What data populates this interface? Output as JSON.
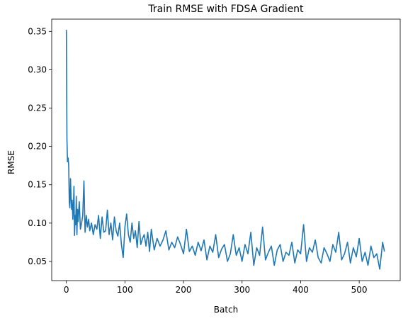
{
  "chart_data": {
    "type": "line",
    "title": "Train RMSE with FDSA Gradient",
    "xlabel": "Batch",
    "ylabel": "RMSE",
    "xlim": [
      -25,
      570
    ],
    "ylim": [
      0.025,
      0.366
    ],
    "xticks": [
      0,
      100,
      200,
      300,
      400,
      500
    ],
    "yticks": [
      0.05,
      0.1,
      0.15,
      0.2,
      0.25,
      0.3,
      0.35
    ],
    "ytick_labels": [
      "0.05",
      "0.10",
      "0.15",
      "0.20",
      "0.25",
      "0.30",
      "0.35"
    ],
    "grid": false,
    "series": [
      {
        "color": "#1f77b4",
        "x": [
          0,
          1,
          2,
          3,
          4,
          5,
          6,
          7,
          8,
          9,
          10,
          11,
          12,
          13,
          14,
          15,
          16,
          17,
          18,
          19,
          20,
          22,
          24,
          26,
          28,
          30,
          32,
          34,
          36,
          38,
          40,
          43,
          46,
          49,
          52,
          55,
          58,
          61,
          64,
          67,
          70,
          73,
          76,
          79,
          82,
          85,
          88,
          91,
          94,
          97,
          100,
          103,
          106,
          109,
          112,
          115,
          118,
          121,
          124,
          127,
          130,
          133,
          136,
          139,
          142,
          145,
          150,
          155,
          160,
          165,
          170,
          175,
          180,
          185,
          190,
          195,
          200,
          205,
          210,
          215,
          220,
          225,
          230,
          235,
          240,
          245,
          250,
          255,
          260,
          265,
          270,
          275,
          280,
          285,
          290,
          295,
          300,
          305,
          310,
          315,
          320,
          325,
          330,
          335,
          340,
          345,
          350,
          355,
          360,
          365,
          370,
          375,
          380,
          385,
          390,
          395,
          400,
          405,
          410,
          415,
          420,
          425,
          430,
          435,
          440,
          445,
          450,
          455,
          460,
          465,
          470,
          475,
          480,
          485,
          490,
          495,
          500,
          505,
          510,
          515,
          520,
          525,
          530,
          535,
          540,
          543
        ],
        "y": [
          0.352,
          0.21,
          0.18,
          0.185,
          0.175,
          0.128,
          0.12,
          0.158,
          0.135,
          0.118,
          0.13,
          0.105,
          0.12,
          0.148,
          0.084,
          0.11,
          0.098,
          0.135,
          0.085,
          0.118,
          0.102,
          0.128,
          0.092,
          0.1,
          0.11,
          0.155,
          0.088,
          0.11,
          0.095,
          0.105,
          0.09,
          0.1,
          0.085,
          0.098,
          0.092,
          0.11,
          0.08,
          0.108,
          0.088,
          0.09,
          0.117,
          0.085,
          0.1,
          0.078,
          0.108,
          0.09,
          0.083,
          0.1,
          0.072,
          0.055,
          0.095,
          0.112,
          0.085,
          0.075,
          0.1,
          0.08,
          0.09,
          0.068,
          0.102,
          0.072,
          0.08,
          0.085,
          0.07,
          0.088,
          0.063,
          0.092,
          0.065,
          0.08,
          0.07,
          0.078,
          0.09,
          0.065,
          0.075,
          0.068,
          0.082,
          0.072,
          0.06,
          0.092,
          0.063,
          0.07,
          0.058,
          0.075,
          0.064,
          0.078,
          0.052,
          0.07,
          0.062,
          0.085,
          0.055,
          0.066,
          0.072,
          0.05,
          0.06,
          0.085,
          0.058,
          0.068,
          0.05,
          0.072,
          0.06,
          0.088,
          0.045,
          0.068,
          0.058,
          0.095,
          0.052,
          0.062,
          0.07,
          0.045,
          0.065,
          0.072,
          0.05,
          0.062,
          0.058,
          0.075,
          0.048,
          0.065,
          0.06,
          0.098,
          0.05,
          0.068,
          0.062,
          0.078,
          0.055,
          0.048,
          0.068,
          0.06,
          0.05,
          0.072,
          0.062,
          0.088,
          0.052,
          0.06,
          0.075,
          0.048,
          0.068,
          0.056,
          0.08,
          0.05,
          0.062,
          0.045,
          0.07,
          0.055,
          0.06,
          0.04,
          0.075,
          0.063
        ]
      }
    ]
  }
}
